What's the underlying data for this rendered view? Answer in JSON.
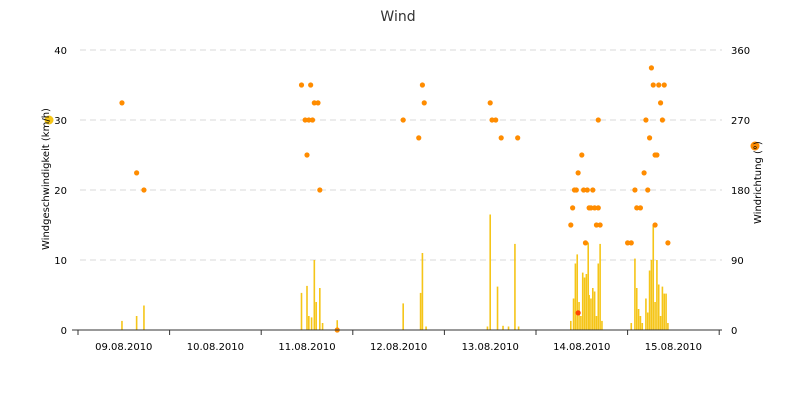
{
  "chart_data": {
    "type": "line",
    "title": "Wind",
    "ylabel": "Windgeschwindigkeit (km/h)",
    "y2label": "Windrichtung (°)",
    "ylim": [
      0,
      40
    ],
    "y2lim": [
      0,
      360
    ],
    "yticks": [
      "0",
      "10",
      "20",
      "30",
      "40"
    ],
    "y2ticks": [
      "0",
      "90",
      "180",
      "270",
      "360"
    ],
    "xlim": [
      0,
      7
    ],
    "x_tick_labels": [
      "09.08.2010",
      "10.08.2010",
      "11.08.2010",
      "12.08.2010",
      "13.08.2010",
      "14.08.2010",
      "15.08.2010"
    ],
    "x_tick_positions": [
      0,
      1,
      2,
      3,
      4,
      5,
      6
    ],
    "x_unit": "days, 0 = 09.08.2010 00:00",
    "grid": true,
    "colors": {
      "speed": "#f5c518",
      "direction": "#ff8c00",
      "direction_low": "#ff4500"
    },
    "series": [
      {
        "name": "Windgeschwindigkeit (km/h)",
        "axis": "left",
        "kind": "bar",
        "points": [
          [
            0.48,
            1.3
          ],
          [
            0.64,
            2.0
          ],
          [
            0.72,
            3.5
          ],
          [
            2.44,
            5.3
          ],
          [
            2.5,
            6.3
          ],
          [
            2.52,
            2.0
          ],
          [
            2.55,
            1.8
          ],
          [
            2.58,
            10.0
          ],
          [
            2.6,
            4.0
          ],
          [
            2.64,
            6.0
          ],
          [
            2.67,
            1.0
          ],
          [
            2.83,
            1.4
          ],
          [
            3.55,
            3.8
          ],
          [
            3.74,
            5.3
          ],
          [
            3.76,
            11.0
          ],
          [
            3.8,
            0.5
          ],
          [
            4.47,
            0.5
          ],
          [
            4.5,
            16.5
          ],
          [
            4.58,
            6.2
          ],
          [
            4.64,
            0.6
          ],
          [
            4.7,
            0.5
          ],
          [
            4.77,
            12.3
          ],
          [
            4.81,
            0.5
          ],
          [
            5.38,
            1.3
          ],
          [
            5.41,
            4.5
          ],
          [
            5.43,
            9.5
          ],
          [
            5.45,
            10.8
          ],
          [
            5.47,
            4.0
          ],
          [
            5.49,
            2.0
          ],
          [
            5.51,
            8.2
          ],
          [
            5.53,
            7.5
          ],
          [
            5.55,
            8.0
          ],
          [
            5.57,
            12.5
          ],
          [
            5.58,
            5.0
          ],
          [
            5.6,
            4.5
          ],
          [
            5.62,
            6.0
          ],
          [
            5.64,
            5.5
          ],
          [
            5.66,
            2.0
          ],
          [
            5.68,
            9.5
          ],
          [
            5.7,
            12.3
          ],
          [
            5.72,
            1.3
          ],
          [
            6.04,
            1.0
          ],
          [
            6.08,
            10.2
          ],
          [
            6.1,
            6.0
          ],
          [
            6.12,
            3.0
          ],
          [
            6.14,
            2.0
          ],
          [
            6.16,
            1.0
          ],
          [
            6.2,
            4.5
          ],
          [
            6.22,
            2.5
          ],
          [
            6.24,
            8.5
          ],
          [
            6.26,
            10.0
          ],
          [
            6.28,
            15.0
          ],
          [
            6.3,
            4.0
          ],
          [
            6.32,
            10.0
          ],
          [
            6.34,
            6.5
          ],
          [
            6.36,
            2.0
          ],
          [
            6.38,
            6.2
          ],
          [
            6.4,
            5.2
          ],
          [
            6.42,
            5.2
          ],
          [
            6.44,
            1.0
          ]
        ]
      },
      {
        "name": "Windrichtung (°)",
        "axis": "right",
        "kind": "scatter",
        "points": [
          [
            0.48,
            292
          ],
          [
            0.64,
            202
          ],
          [
            0.72,
            180
          ],
          [
            2.44,
            315
          ],
          [
            2.48,
            270
          ],
          [
            2.5,
            225
          ],
          [
            2.52,
            270
          ],
          [
            2.54,
            315
          ],
          [
            2.56,
            270
          ],
          [
            2.58,
            292
          ],
          [
            2.62,
            292
          ],
          [
            2.64,
            180
          ],
          [
            2.83,
            0
          ],
          [
            3.55,
            270
          ],
          [
            3.72,
            247
          ],
          [
            3.76,
            315
          ],
          [
            3.78,
            292
          ],
          [
            4.5,
            292
          ],
          [
            4.52,
            270
          ],
          [
            4.56,
            270
          ],
          [
            4.62,
            247
          ],
          [
            4.8,
            247
          ],
          [
            5.38,
            135
          ],
          [
            5.4,
            157
          ],
          [
            5.42,
            180
          ],
          [
            5.44,
            180
          ],
          [
            5.46,
            202
          ],
          [
            5.5,
            225
          ],
          [
            5.52,
            180
          ],
          [
            5.54,
            112
          ],
          [
            5.56,
            180
          ],
          [
            5.58,
            157
          ],
          [
            5.6,
            157
          ],
          [
            5.62,
            180
          ],
          [
            5.64,
            157
          ],
          [
            5.66,
            135
          ],
          [
            5.68,
            157
          ],
          [
            5.7,
            135
          ],
          [
            5.68,
            270
          ],
          [
            6.0,
            112
          ],
          [
            6.04,
            112
          ],
          [
            6.08,
            180
          ],
          [
            6.1,
            157
          ],
          [
            6.14,
            157
          ],
          [
            6.18,
            202
          ],
          [
            6.2,
            270
          ],
          [
            6.22,
            180
          ],
          [
            6.24,
            247
          ],
          [
            6.26,
            337
          ],
          [
            6.28,
            315
          ],
          [
            6.3,
            225
          ],
          [
            6.32,
            225
          ],
          [
            6.34,
            315
          ],
          [
            6.36,
            292
          ],
          [
            6.38,
            270
          ],
          [
            6.4,
            315
          ],
          [
            6.44,
            112
          ],
          [
            6.3,
            135
          ]
        ]
      },
      {
        "name": "",
        "axis": "right",
        "kind": "scatter-low",
        "points": [
          [
            5.46,
            22
          ]
        ]
      }
    ],
    "legend": {
      "left_marker_color": "#f5c518",
      "right_marker_color": "#ff8c00"
    }
  }
}
